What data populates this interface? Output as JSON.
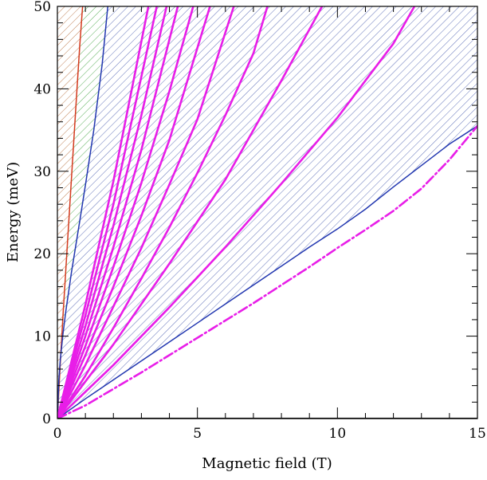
{
  "chart_data": {
    "type": "line",
    "title": "",
    "xlabel": "Magnetic field (T)",
    "ylabel": "Energy (meV)",
    "xlim": [
      0,
      15
    ],
    "ylim": [
      0,
      50
    ],
    "xticks": [
      0,
      5,
      10,
      15
    ],
    "xtick_labels": [
      "0",
      "5",
      "10",
      "15"
    ],
    "yticks": [
      0,
      10,
      20,
      30,
      40,
      50
    ],
    "ytick_labels": [
      "0",
      "10",
      "20",
      "30",
      "40",
      "50"
    ],
    "grid": false,
    "hatched_regions": [
      {
        "color": "#b0622c",
        "boundary_left": "y-axis",
        "boundary_right": "red-boundary"
      },
      {
        "color": "#2f9a2f",
        "boundary_left": "red-boundary",
        "boundary_right": "blue-boundary-upper"
      },
      {
        "color": "#3a4fa8",
        "boundary_left": "blue-boundary-upper",
        "boundary_right": "blue-boundary-lower"
      }
    ],
    "series": [
      {
        "color": "#d43a1e",
        "style": "solid",
        "role": "red-boundary",
        "x": [
          0,
          0.1,
          0.2,
          0.3,
          0.4,
          0.5,
          0.6,
          0.7,
          0.8,
          0.9
        ],
        "y": [
          0,
          6.5,
          12.5,
          18.0,
          23.5,
          29.0,
          34.5,
          40.0,
          45.3,
          50
        ]
      },
      {
        "color": "#2237b0",
        "style": "solid",
        "role": "blue-boundary-upper",
        "x": [
          0,
          0.05,
          0.1,
          0.2,
          0.3,
          0.5,
          0.8,
          1.0,
          1.3,
          1.6,
          1.8
        ],
        "y": [
          0,
          4.6,
          7.0,
          10.3,
          13.0,
          17.7,
          24.0,
          28.3,
          35.0,
          43.0,
          50
        ]
      },
      {
        "color": "#2237b0",
        "style": "solid",
        "role": "blue-boundary-lower",
        "x": [
          0,
          1,
          2,
          3,
          4,
          5,
          6,
          7,
          8,
          9,
          10,
          11,
          12,
          13,
          14,
          15
        ],
        "y": [
          0,
          2.4,
          4.7,
          7.0,
          9.3,
          11.6,
          13.9,
          16.2,
          18.5,
          20.8,
          23.0,
          25.4,
          28.1,
          30.7,
          33.3,
          35.5
        ]
      },
      {
        "color": "#e81ee8",
        "style": "dashdot",
        "x": [
          0,
          1,
          2,
          3,
          4,
          5,
          6,
          7,
          8,
          9,
          10,
          11,
          12,
          13,
          14,
          15
        ],
        "y": [
          0,
          1.6,
          3.6,
          5.6,
          7.7,
          9.8,
          11.9,
          14.0,
          16.2,
          18.4,
          20.7,
          22.9,
          25.2,
          27.9,
          31.4,
          35.5
        ]
      },
      {
        "color": "#e81ee8",
        "style": "solid",
        "x": [
          0,
          2,
          4,
          6,
          8,
          10,
          12,
          12.75
        ],
        "y": [
          0,
          6.5,
          13.5,
          20.8,
          28.5,
          36.5,
          45.5,
          50
        ]
      },
      {
        "color": "#e81ee8",
        "style": "solid",
        "x": [
          0,
          2,
          4,
          6,
          8,
          9.45
        ],
        "y": [
          0,
          9.0,
          18.8,
          29.0,
          41.0,
          50
        ]
      },
      {
        "color": "#e81ee8",
        "style": "solid",
        "x": [
          0,
          1,
          2,
          3,
          4,
          5,
          6,
          7,
          7.5
        ],
        "y": [
          0,
          5.2,
          11.0,
          17.0,
          23.2,
          29.8,
          36.8,
          44.3,
          50
        ]
      },
      {
        "color": "#e81ee8",
        "style": "solid",
        "x": [
          0,
          1,
          2,
          3,
          4,
          5,
          6.3
        ],
        "y": [
          0,
          6.5,
          13.6,
          20.7,
          28.4,
          36.3,
          50
        ]
      },
      {
        "color": "#e81ee8",
        "style": "solid",
        "x": [
          0,
          1,
          2,
          3,
          4,
          5.45
        ],
        "y": [
          0,
          7.7,
          16.0,
          24.6,
          33.8,
          50
        ]
      },
      {
        "color": "#e81ee8",
        "style": "solid",
        "x": [
          0,
          1,
          2,
          3,
          4,
          4.85
        ],
        "y": [
          0,
          8.8,
          18.4,
          28.6,
          39.7,
          50
        ]
      },
      {
        "color": "#e81ee8",
        "style": "solid",
        "x": [
          0,
          1,
          2,
          3,
          4.3
        ],
        "y": [
          0,
          10.0,
          20.8,
          32.6,
          50
        ]
      },
      {
        "color": "#e81ee8",
        "style": "solid",
        "x": [
          0,
          1,
          2,
          3,
          3.9
        ],
        "y": [
          0,
          11.2,
          23.4,
          36.8,
          50
        ]
      },
      {
        "color": "#e81ee8",
        "style": "solid",
        "x": [
          0,
          1,
          2,
          3,
          3.55
        ],
        "y": [
          0,
          12.5,
          26.0,
          41.5,
          50
        ]
      },
      {
        "color": "#e81ee8",
        "style": "solid",
        "x": [
          0,
          1,
          2,
          3.25
        ],
        "y": [
          0,
          13.8,
          28.8,
          50
        ]
      },
      {
        "color": "#000000",
        "style": "solid",
        "role": "zero-line",
        "x": [
          0,
          15
        ],
        "y": [
          0,
          0
        ]
      }
    ]
  }
}
